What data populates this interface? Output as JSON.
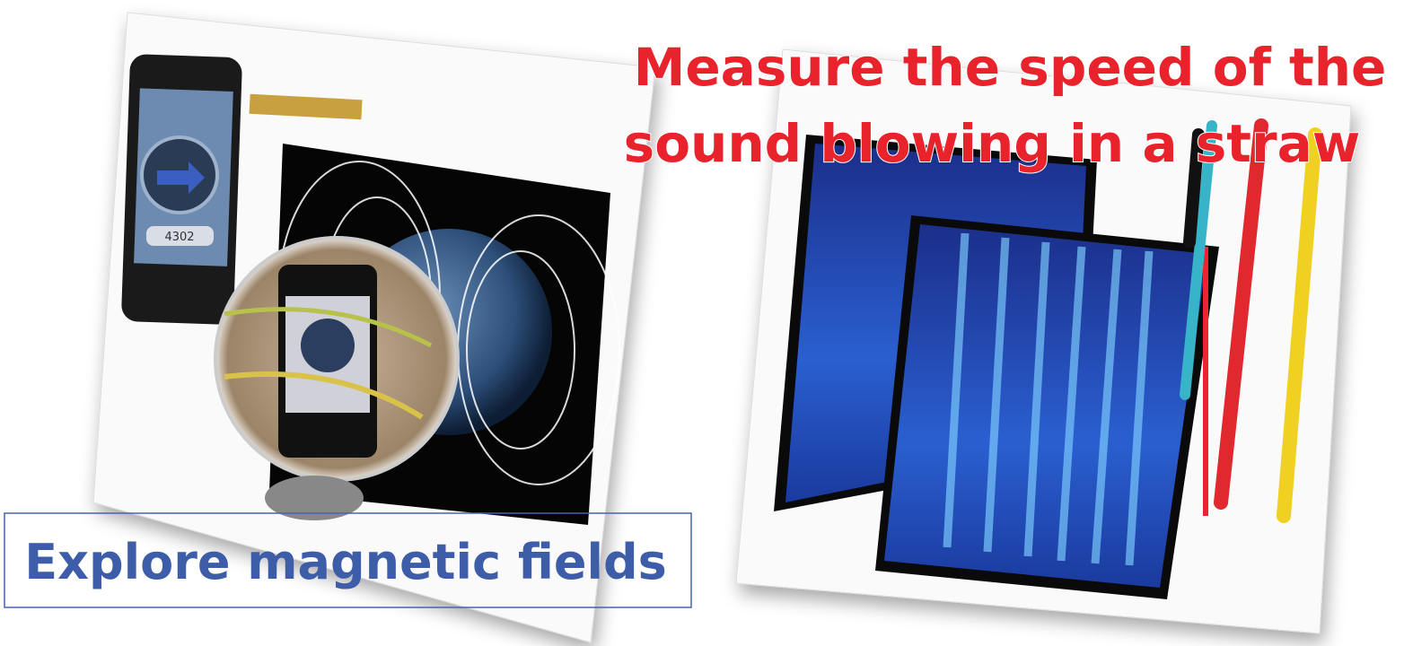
{
  "slide": {
    "left_panel": {
      "caption": "Explore magnetic fields",
      "phone_reading": "4302"
    },
    "right_panel": {
      "caption_lines": [
        "Measure the speed of the",
        "sound blowing in a straw"
      ]
    }
  }
}
